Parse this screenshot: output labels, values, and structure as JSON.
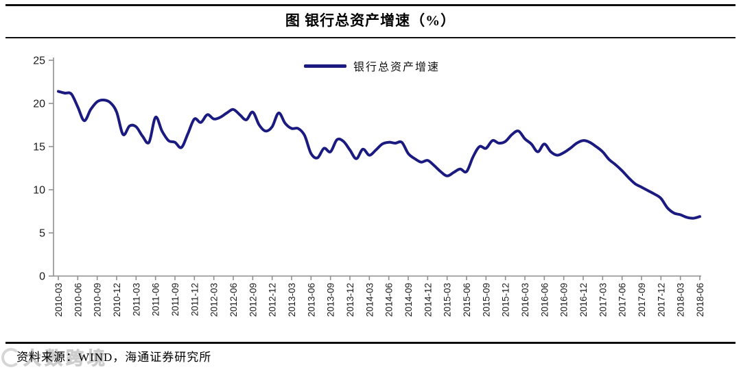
{
  "header": {
    "title": "图 银行总资产增速（%）"
  },
  "legend": {
    "label": "银行总资产增速"
  },
  "footer": {
    "source": "资料来源：WIND，海通证券研究所"
  },
  "watermark": {
    "text": "大数跨境"
  },
  "colors": {
    "line": "#1a1a80",
    "axis": "#8f8f8f",
    "tick_text": "#1a1a1a",
    "rule": "#0d0d0d",
    "watermark": "#cbcbcb"
  },
  "chart_data": {
    "type": "line",
    "title": "图 银行总资产增速（%）",
    "xlabel": "",
    "ylabel": "",
    "ylim": [
      0,
      25
    ],
    "yticks": [
      0,
      5,
      10,
      15,
      20,
      25
    ],
    "x_label_every": 3,
    "grid": false,
    "legend_position": "top-center",
    "x": [
      "2010-03",
      "2010-04",
      "2010-05",
      "2010-06",
      "2010-07",
      "2010-08",
      "2010-09",
      "2010-10",
      "2010-11",
      "2010-12",
      "2011-01",
      "2011-02",
      "2011-03",
      "2011-04",
      "2011-05",
      "2011-06",
      "2011-07",
      "2011-08",
      "2011-09",
      "2011-10",
      "2011-11",
      "2011-12",
      "2012-01",
      "2012-02",
      "2012-03",
      "2012-04",
      "2012-05",
      "2012-06",
      "2012-07",
      "2012-08",
      "2012-09",
      "2012-10",
      "2012-11",
      "2012-12",
      "2013-01",
      "2013-02",
      "2013-03",
      "2013-04",
      "2013-05",
      "2013-06",
      "2013-07",
      "2013-08",
      "2013-09",
      "2013-10",
      "2013-11",
      "2013-12",
      "2014-01",
      "2014-02",
      "2014-03",
      "2014-04",
      "2014-05",
      "2014-06",
      "2014-07",
      "2014-08",
      "2014-09",
      "2014-10",
      "2014-11",
      "2014-12",
      "2015-01",
      "2015-02",
      "2015-03",
      "2015-04",
      "2015-05",
      "2015-06",
      "2015-07",
      "2015-08",
      "2015-09",
      "2015-10",
      "2015-11",
      "2015-12",
      "2016-01",
      "2016-02",
      "2016-03",
      "2016-04",
      "2016-05",
      "2016-06",
      "2016-07",
      "2016-08",
      "2016-09",
      "2016-10",
      "2016-11",
      "2016-12",
      "2017-01",
      "2017-02",
      "2017-03",
      "2017-04",
      "2017-05",
      "2017-06",
      "2017-07",
      "2017-08",
      "2017-09",
      "2017-10",
      "2017-11",
      "2017-12",
      "2018-01",
      "2018-02",
      "2018-03",
      "2018-04",
      "2018-05",
      "2018-06"
    ],
    "series": [
      {
        "name": "银行总资产增速",
        "color": "#1a1a80",
        "values": [
          21.4,
          21.2,
          21.1,
          19.6,
          18.0,
          19.3,
          20.2,
          20.4,
          20.1,
          19.0,
          16.4,
          17.4,
          17.3,
          16.2,
          15.5,
          18.4,
          16.8,
          15.7,
          15.5,
          14.9,
          16.5,
          18.2,
          17.8,
          18.7,
          18.2,
          18.4,
          18.9,
          19.3,
          18.7,
          18.1,
          19.0,
          17.5,
          16.8,
          17.3,
          18.9,
          17.7,
          17.1,
          17.1,
          16.3,
          14.2,
          13.7,
          14.8,
          14.4,
          15.8,
          15.6,
          14.6,
          13.6,
          14.7,
          14.0,
          14.6,
          15.3,
          15.5,
          15.4,
          15.5,
          14.2,
          13.6,
          13.2,
          13.4,
          12.8,
          12.1,
          11.6,
          12.0,
          12.4,
          12.1,
          13.8,
          15.0,
          14.8,
          15.7,
          15.4,
          15.6,
          16.4,
          16.8,
          15.9,
          15.3,
          14.4,
          15.3,
          14.4,
          14.0,
          14.3,
          14.8,
          15.4,
          15.7,
          15.5,
          15.0,
          14.4,
          13.5,
          12.9,
          12.2,
          11.4,
          10.7,
          10.3,
          9.9,
          9.5,
          9.0,
          7.9,
          7.3,
          7.1,
          6.8,
          6.7,
          6.9
        ]
      }
    ]
  }
}
